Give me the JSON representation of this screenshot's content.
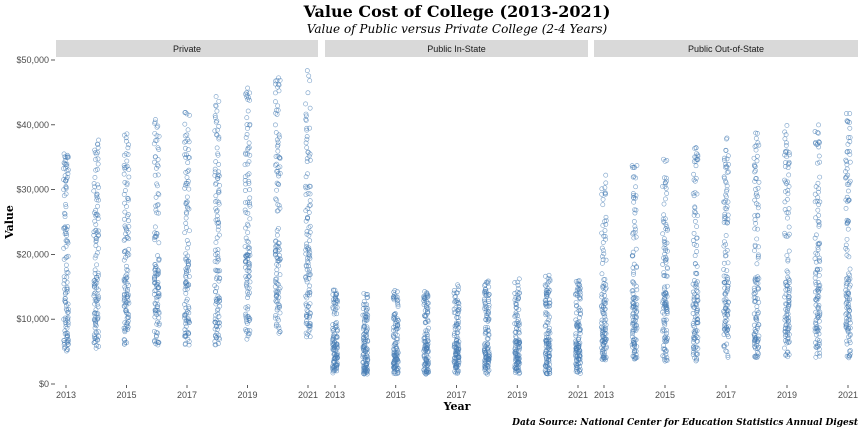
{
  "chart_data": {
    "type": "scatter",
    "title": "Value Cost of College (2013-2021)",
    "subtitle": "Value of Public versus Private College (2-4 Years)",
    "xlabel": "Year",
    "ylabel": "Value",
    "caption": "Data Source: National Center for Education Statistics Annual Digest",
    "xlim": [
      2013,
      2021
    ],
    "ylim": [
      0,
      50000
    ],
    "x_ticks": [
      2013,
      2015,
      2017,
      2019,
      2021
    ],
    "x_tick_labels": [
      "2013",
      "2015",
      "2017",
      "2019",
      "2021"
    ],
    "y_ticks": [
      0,
      10000,
      20000,
      30000,
      40000,
      50000
    ],
    "y_tick_labels": [
      "$0",
      "$10,000",
      "$20,000",
      "$30,000",
      "$40,000",
      "$50,000"
    ],
    "point_color": "#4A7FB5",
    "grid": false,
    "facets": [
      {
        "name": "Private",
        "points_by_year": {
          "2013": {
            "min": 5000,
            "max": 37000
          },
          "2014": {
            "min": 5500,
            "max": 38000
          },
          "2015": {
            "min": 6000,
            "max": 39000
          },
          "2016": {
            "min": 6000,
            "max": 41000
          },
          "2017": {
            "min": 6000,
            "max": 42500
          },
          "2018": {
            "min": 6000,
            "max": 44500
          },
          "2019": {
            "min": 6500,
            "max": 46000
          },
          "2020": {
            "min": 6500,
            "max": 48000
          },
          "2021": {
            "min": 6500,
            "max": 49500
          }
        }
      },
      {
        "name": "Public In-State",
        "points_by_year": {
          "2013": {
            "min": 1500,
            "max": 14500
          },
          "2014": {
            "min": 1500,
            "max": 14000
          },
          "2015": {
            "min": 1500,
            "max": 14500
          },
          "2016": {
            "min": 1500,
            "max": 15000
          },
          "2017": {
            "min": 1500,
            "max": 15500
          },
          "2018": {
            "min": 1500,
            "max": 16000
          },
          "2019": {
            "min": 1500,
            "max": 16500
          },
          "2020": {
            "min": 1500,
            "max": 17000
          },
          "2021": {
            "min": 1500,
            "max": 16000
          }
        }
      },
      {
        "name": "Public Out-of-State",
        "points_by_year": {
          "2013": {
            "min": 3500,
            "max": 32500
          },
          "2014": {
            "min": 3500,
            "max": 34000
          },
          "2015": {
            "min": 3500,
            "max": 35000
          },
          "2016": {
            "min": 3500,
            "max": 36500
          },
          "2017": {
            "min": 4000,
            "max": 38000
          },
          "2018": {
            "min": 4000,
            "max": 39000
          },
          "2019": {
            "min": 4000,
            "max": 40000
          },
          "2020": {
            "min": 4000,
            "max": 41000
          },
          "2021": {
            "min": 4000,
            "max": 42000
          }
        }
      }
    ]
  }
}
